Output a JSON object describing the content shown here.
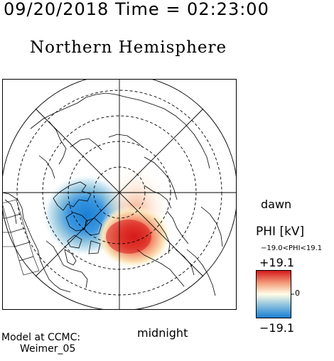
{
  "header": {
    "datetime": "09/20/2018 Time = 02:23:00",
    "title": "Northern Hemisphere"
  },
  "map": {
    "local_time_labels": {
      "dawn": "dawn",
      "midnight": "midnight"
    },
    "potential_pattern": {
      "positive_cell": {
        "value_kv": 19.1,
        "local_time_sector": "post-midnight / dawn"
      },
      "negative_cell": {
        "value_kv": -19.0,
        "local_time_sector": "pre-midnight / dusk"
      }
    }
  },
  "colorbar": {
    "label": "PHI [kV]",
    "range_text": "−19.0<PHI<19.1",
    "max_label": "+19.1",
    "min_label": "−19.1",
    "zero_label": "0",
    "max": 19.1,
    "min": -19.1,
    "colors": {
      "max": "#d7191c",
      "mid_high": "#f4a582",
      "zero": "#fffde8",
      "mid_low": "#92c5de",
      "min": "#1a7fd4"
    }
  },
  "footer": {
    "model_line1": "Model at CCMC:",
    "model_line2": "Weimer_05"
  }
}
